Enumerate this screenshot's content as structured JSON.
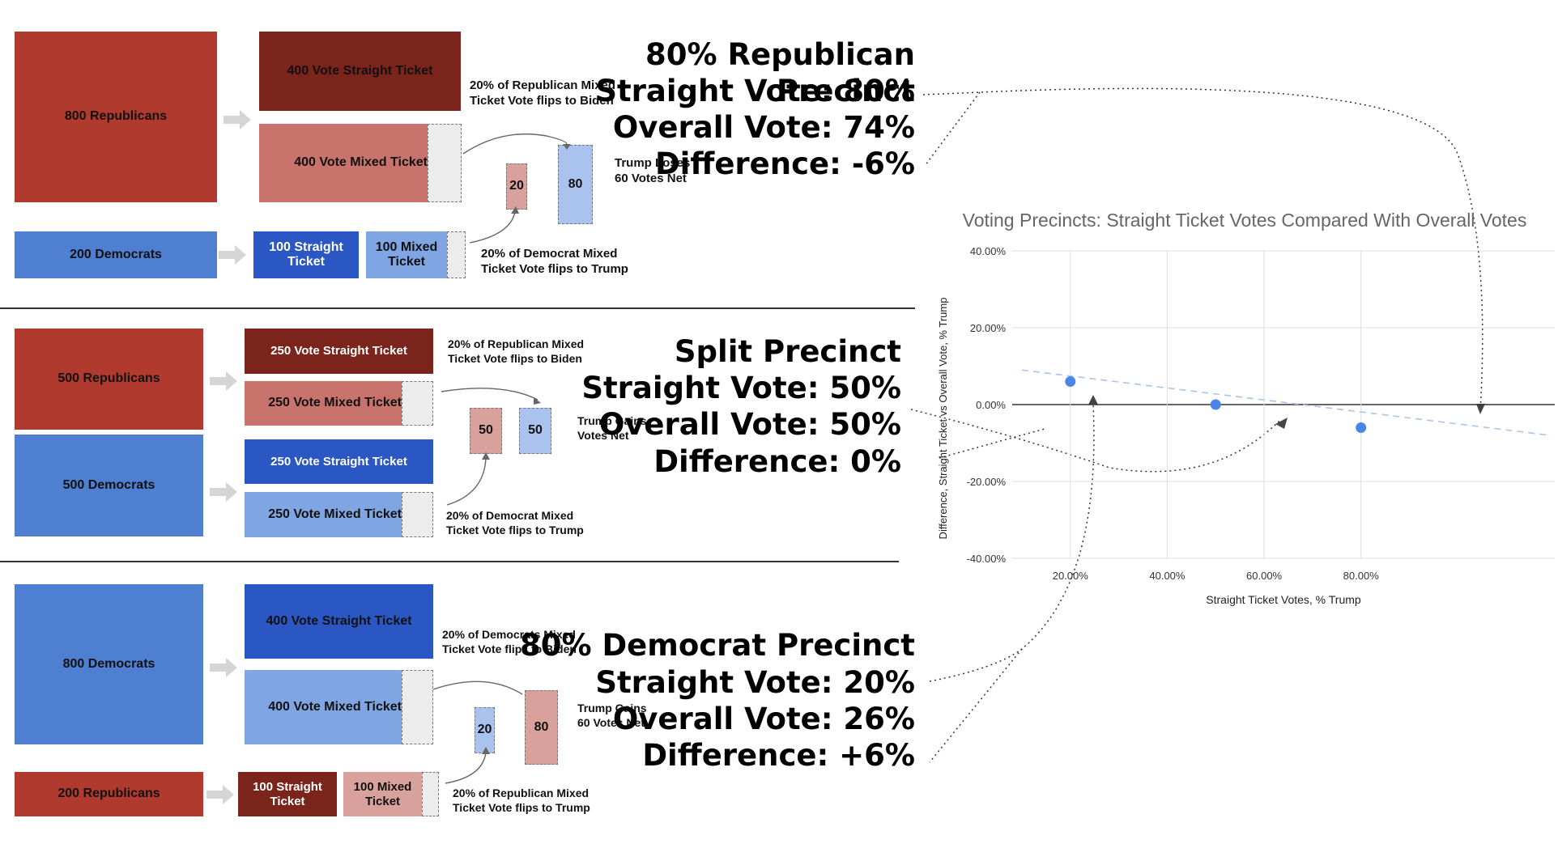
{
  "panel_top": {
    "main_group": "800 Republicans",
    "straight_ticket": "400 Vote Straight Ticket",
    "mixed_ticket": "400 Vote Mixed Ticket",
    "minor_group": "200 Democrats",
    "minor_straight": "100 Straight Ticket",
    "minor_mixed": "100 Mixed Ticket",
    "flip_note_main": "20% of Republican Mixed Ticket Vote flips to Biden",
    "flip_note_minor": "20% of Democrat Mixed Ticket Vote flips to Trump",
    "flip_small": "20",
    "flip_large": "80",
    "net_note": "Trump Loses 60 Votes Net",
    "summary": {
      "title": "80% Republican Precinct",
      "straight": "Straight Vote: 80%",
      "overall": "Overall Vote: 74%",
      "difference": "Difference: -6%"
    }
  },
  "panel_middle": {
    "rep_group": "500 Republicans",
    "dem_group": "500 Democrats",
    "rep_straight": "250 Vote Straight Ticket",
    "rep_mixed": "250 Vote Mixed Ticket",
    "dem_straight": "250 Vote Straight Ticket",
    "dem_mixed": "250 Vote Mixed Ticket",
    "flip_note_rep": "20% of Republican Mixed Ticket Vote flips to Biden",
    "flip_note_dem": "20% of Democrat Mixed Ticket Vote flips to Trump",
    "flip_left": "50",
    "flip_right": "50",
    "net_note": "Trump Gains Votes Net",
    "summary": {
      "title": "Split Precinct",
      "straight": "Straight Vote: 50%",
      "overall": "Overall Vote: 50%",
      "difference": "Difference: 0%"
    }
  },
  "panel_bottom": {
    "main_group": "800 Democrats",
    "straight_ticket": "400 Vote Straight Ticket",
    "mixed_ticket": "400 Vote Mixed Ticket",
    "minor_group": "200 Republicans",
    "minor_straight": "100 Straight Ticket",
    "minor_mixed": "100 Mixed Ticket",
    "flip_note_main": "20% of Democrats Mixed Ticket Vote flips to Biden",
    "flip_note_minor": "20% of Republican Mixed Ticket Vote flips to Trump",
    "flip_small": "20",
    "flip_large": "80",
    "net_note": "Trump Gains 60 Votes Net",
    "summary": {
      "title": "80% Democrat Precinct",
      "straight": "Straight Vote: 20%",
      "overall": "Overall Vote: 26%",
      "difference": "Difference: +6%"
    }
  },
  "chart_data": {
    "type": "scatter",
    "title": "Voting Precincts: Straight Ticket Votes Compared With Overall Votes",
    "xlabel": "Straight Ticket Votes, % Trump",
    "ylabel": "Difference, Straight Ticket vs Overall Vote, % Trump",
    "x_ticks": [
      "20.00%",
      "40.00%",
      "60.00%",
      "80.00%"
    ],
    "y_ticks": [
      "40.00%",
      "20.00%",
      "0.00%",
      "-20.00%",
      "-40.00%"
    ],
    "xlim": [
      8,
      120
    ],
    "ylim": [
      -40,
      40
    ],
    "x": [
      20,
      50,
      80
    ],
    "y": [
      6,
      0,
      -6
    ],
    "trendline": {
      "x": [
        10,
        119
      ],
      "y": [
        9,
        -8
      ]
    },
    "grid": true,
    "point_color": "#4a86e8"
  }
}
